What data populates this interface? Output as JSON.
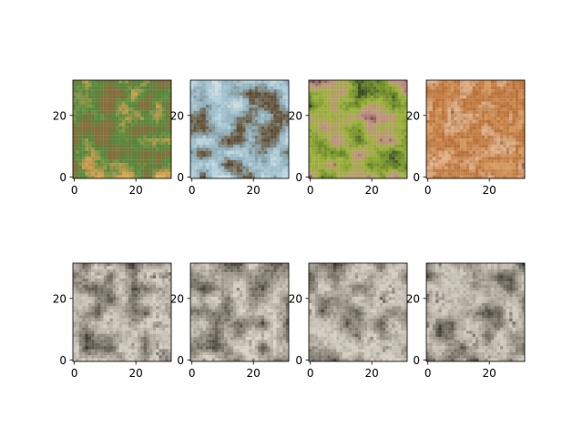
{
  "chart_data": {
    "type": "image_grid",
    "grid": {
      "rows": 2,
      "cols": 4
    },
    "xlim": [
      -0.5,
      31.5
    ],
    "ylim": [
      31.5,
      -0.5
    ],
    "xticks": [
      0,
      20
    ],
    "yticks": [
      0,
      20
    ],
    "panels": [
      {
        "row": 0,
        "col": 0,
        "palette": [
          "#6f7a46",
          "#8c6a3a",
          "#4f8a3b",
          "#c89a4c",
          "#e3c060"
        ]
      },
      {
        "row": 0,
        "col": 1,
        "palette": [
          "#e6e4dc",
          "#b7d3dd",
          "#8fb0bd",
          "#6b5a40",
          "#3f3a30"
        ]
      },
      {
        "row": 0,
        "col": 2,
        "palette": [
          "#2b3a22",
          "#6d8a2a",
          "#9cb33a",
          "#c4908a",
          "#5e4336"
        ]
      },
      {
        "row": 0,
        "col": 3,
        "palette": [
          "#c9884a",
          "#d9a065",
          "#b86f36",
          "#e2b48c",
          "#8c5a2c"
        ]
      },
      {
        "row": 1,
        "col": 0,
        "palette": [
          "#2a2622",
          "#6d675e",
          "#a39c90",
          "#d6d0c5",
          "#4a443c"
        ]
      },
      {
        "row": 1,
        "col": 1,
        "palette": [
          "#2c2823",
          "#716b60",
          "#aaa396",
          "#dcd6ca",
          "#4b453d"
        ]
      },
      {
        "row": 1,
        "col": 2,
        "palette": [
          "#2f2b26",
          "#736d62",
          "#a8a194",
          "#d8d2c7",
          "#4c463e"
        ]
      },
      {
        "row": 1,
        "col": 3,
        "palette": [
          "#2d2924",
          "#6f695f",
          "#a59e91",
          "#d3cdc2",
          "#4a443d"
        ]
      }
    ]
  }
}
